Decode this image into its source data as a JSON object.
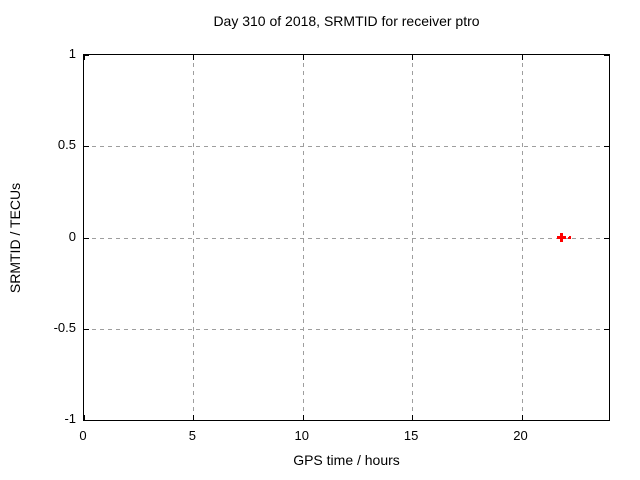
{
  "chart_data": {
    "type": "scatter",
    "title": "Day 310 of 2018, SRMTID for receiver ptro",
    "xlabel": "GPS time / hours",
    "ylabel": "SRMTID / TECUs",
    "xlim": [
      0,
      24
    ],
    "ylim": [
      -1,
      1
    ],
    "xticks": [
      {
        "value": 0,
        "label": "0"
      },
      {
        "value": 5,
        "label": "5"
      },
      {
        "value": 10,
        "label": "10"
      },
      {
        "value": 15,
        "label": "15"
      },
      {
        "value": 20,
        "label": "20"
      }
    ],
    "yticks": [
      {
        "value": -1,
        "label": "-1"
      },
      {
        "value": -0.5,
        "label": "-0.5"
      },
      {
        "value": 0,
        "label": "0"
      },
      {
        "value": 0.5,
        "label": "0.5"
      },
      {
        "value": 1,
        "label": "1"
      }
    ],
    "grid": true,
    "legend": "none",
    "colors": {
      "background": "#ffffff",
      "axis_border": "#000000",
      "grid": "#9e9e9e",
      "text": "#000000",
      "series": "#ff0000"
    },
    "series": [
      {
        "name": "SRMTID",
        "marker": "plus",
        "color": "#ff0000",
        "points": [
          {
            "x": 21.85,
            "y": 0.0,
            "size": 9
          },
          {
            "x": 22.2,
            "y": 0.0,
            "size": 3
          }
        ]
      }
    ]
  }
}
